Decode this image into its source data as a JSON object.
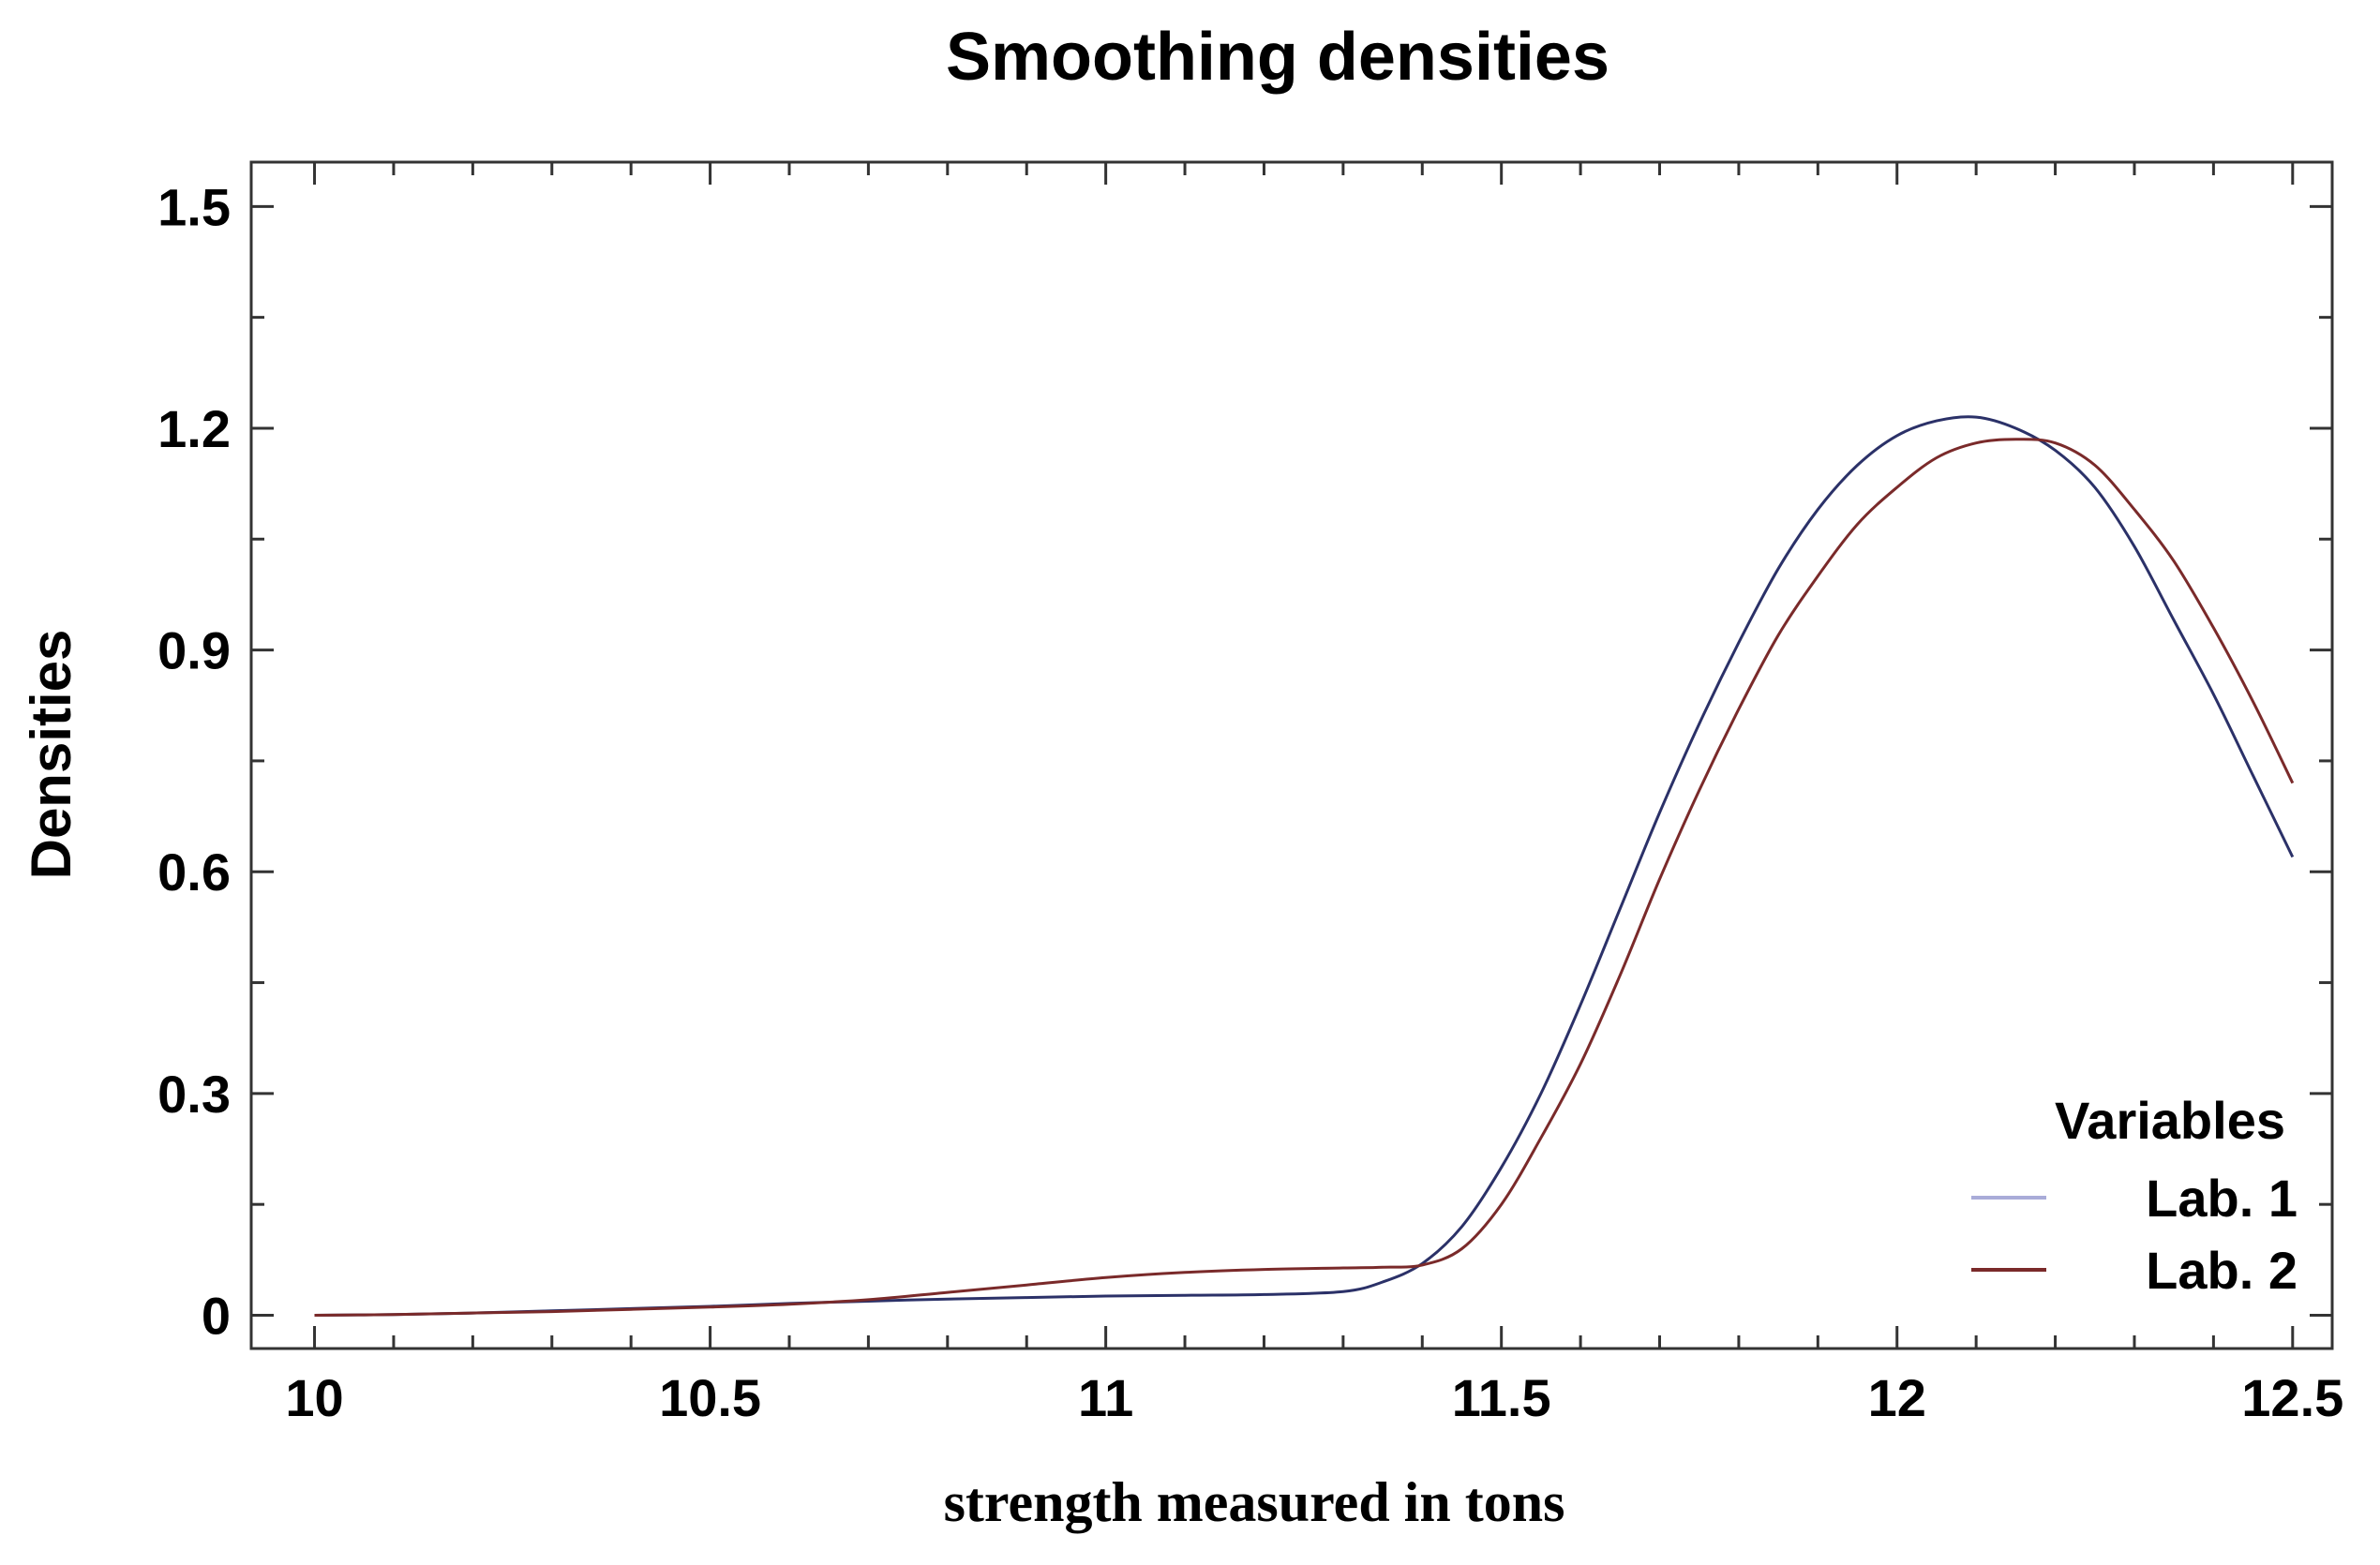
{
  "chart_data": {
    "type": "line",
    "title": "Smoothing densities",
    "xlabel": "strength measured in tons",
    "ylabel": "Densities",
    "xlim": [
      9.92,
      12.55
    ],
    "ylim": [
      -0.045,
      1.56
    ],
    "xticks": [
      10,
      10.5,
      11,
      11.5,
      12,
      12.5
    ],
    "xtick_labels": [
      "10",
      "10.5",
      "11",
      "11.5",
      "12",
      "12.5"
    ],
    "yticks": [
      0,
      0.3,
      0.6,
      0.9,
      1.2,
      1.5
    ],
    "ytick_labels": [
      "0",
      "0.3",
      "0.6",
      "0.9",
      "1.2",
      "1.5"
    ],
    "legend": {
      "title": "Variables",
      "position": "bottom-right"
    },
    "x": [
      10.0,
      10.1,
      10.2,
      10.3,
      10.4,
      10.5,
      10.6,
      10.7,
      10.8,
      10.9,
      11.0,
      11.1,
      11.2,
      11.3,
      11.35,
      11.4,
      11.45,
      11.5,
      11.55,
      11.6,
      11.65,
      11.7,
      11.75,
      11.8,
      11.85,
      11.9,
      11.95,
      12.0,
      12.05,
      12.1,
      12.15,
      12.2,
      12.25,
      12.3,
      12.35,
      12.4,
      12.45,
      12.5
    ],
    "series": [
      {
        "name": "Lab. 1",
        "color": "#2b3168",
        "values": [
          0.0,
          0.001,
          0.003,
          0.006,
          0.009,
          0.012,
          0.016,
          0.019,
          0.022,
          0.024,
          0.026,
          0.027,
          0.028,
          0.032,
          0.045,
          0.07,
          0.12,
          0.2,
          0.3,
          0.42,
          0.55,
          0.68,
          0.8,
          0.91,
          1.01,
          1.09,
          1.15,
          1.19,
          1.21,
          1.215,
          1.2,
          1.17,
          1.12,
          1.04,
          0.94,
          0.84,
          0.73,
          0.62
        ]
      },
      {
        "name": "Lab. 2",
        "color": "#7a2a2a",
        "values": [
          0.0,
          0.001,
          0.003,
          0.005,
          0.008,
          0.011,
          0.015,
          0.021,
          0.031,
          0.041,
          0.051,
          0.058,
          0.062,
          0.064,
          0.065,
          0.068,
          0.09,
          0.15,
          0.24,
          0.34,
          0.46,
          0.59,
          0.71,
          0.82,
          0.92,
          1.0,
          1.07,
          1.12,
          1.16,
          1.18,
          1.185,
          1.18,
          1.15,
          1.09,
          1.02,
          0.93,
          0.83,
          0.72
        ]
      }
    ]
  }
}
